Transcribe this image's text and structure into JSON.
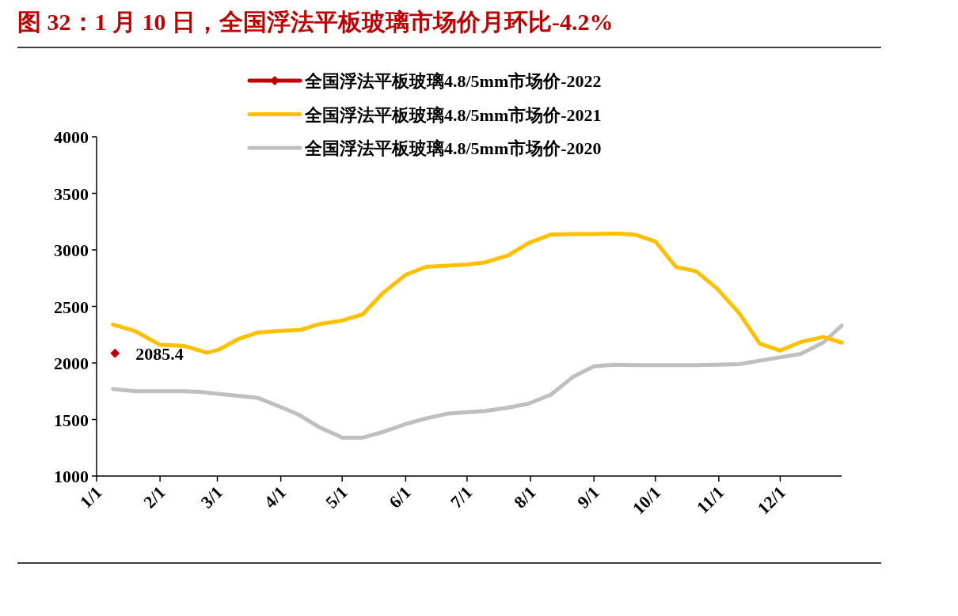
{
  "chart_data": {
    "type": "line",
    "title": "图 32：1 月 10 日，全国浮法平板玻璃市场价月环比-4.2%",
    "legend": "top",
    "line_style": "solid",
    "xlim": [
      "--01-01",
      "--12-31"
    ],
    "xticks": [
      {
        "value": "--01-01",
        "label": "1/1"
      },
      {
        "value": "--02-01",
        "label": "2/1"
      },
      {
        "value": "--03-01",
        "label": "3/1"
      },
      {
        "value": "--04-01",
        "label": "4/1"
      },
      {
        "value": "--05-01",
        "label": "5/1"
      },
      {
        "value": "--06-01",
        "label": "6/1"
      },
      {
        "value": "--07-01",
        "label": "7/1"
      },
      {
        "value": "--08-01",
        "label": "8/1"
      },
      {
        "value": "--09-01",
        "label": "9/1"
      },
      {
        "value": "--10-01",
        "label": "10/1"
      },
      {
        "value": "--11-01",
        "label": "11/1"
      },
      {
        "value": "--12-01",
        "label": "12/1"
      }
    ],
    "ylim": [
      1000,
      4000
    ],
    "yticks": [
      1000,
      1500,
      2000,
      2500,
      3000,
      3500,
      4000
    ],
    "series": [
      {
        "name": "全国浮法平板玻璃4.8/5mm市场价-2022",
        "color": "#c00000",
        "marker": "diamond",
        "x": [
          "--01-10"
        ],
        "values": [
          2085.4
        ],
        "value_labels": [
          "2085.4"
        ]
      },
      {
        "name": "全国浮法平板玻璃4.8/5mm市场价-2021",
        "color": "#ffc000",
        "marker": "none",
        "x": [
          "--01-09",
          "--01-20",
          "--02-01",
          "--02-13",
          "--02-24",
          "--03-02",
          "--03-11",
          "--03-21",
          "--04-01",
          "--04-10",
          "--04-20",
          "--05-01",
          "--05-11",
          "--05-21",
          "--06-01",
          "--06-11",
          "--06-21",
          "--07-01",
          "--07-10",
          "--07-21",
          "--07-31",
          "--08-11",
          "--08-22",
          "--09-01",
          "--09-11",
          "--09-21",
          "--10-01",
          "--10-11",
          "--10-21",
          "--10-31",
          "--11-11",
          "--11-21",
          "--12-01",
          "--12-11",
          "--12-22",
          "--12-31"
        ],
        "values": [
          2340,
          2280,
          2160,
          2150,
          2090,
          2120,
          2210,
          2270,
          2285,
          2290,
          2345,
          2375,
          2430,
          2620,
          2780,
          2850,
          2860,
          2870,
          2890,
          2950,
          3060,
          3135,
          3140,
          3140,
          3145,
          3135,
          3075,
          2850,
          2810,
          2660,
          2440,
          2170,
          2110,
          2185,
          2230,
          2180
        ]
      },
      {
        "name": "全国浮法平板玻璃4.8/5mm市场价-2020",
        "color": "#bfbfbf",
        "marker": "none",
        "x": [
          "--01-09",
          "--01-20",
          "--02-01",
          "--02-13",
          "--02-20",
          "--03-02",
          "--03-11",
          "--03-21",
          "--04-01",
          "--04-10",
          "--04-20",
          "--05-01",
          "--05-11",
          "--05-21",
          "--06-01",
          "--06-11",
          "--06-21",
          "--07-01",
          "--07-10",
          "--07-21",
          "--07-31",
          "--08-11",
          "--08-22",
          "--09-01",
          "--09-11",
          "--09-21",
          "--10-01",
          "--10-11",
          "--10-21",
          "--10-31",
          "--11-11",
          "--11-21",
          "--12-01",
          "--12-11",
          "--12-22",
          "--12-31"
        ],
        "values": [
          1770,
          1750,
          1750,
          1750,
          1745,
          1725,
          1710,
          1690,
          1610,
          1540,
          1430,
          1340,
          1340,
          1390,
          1460,
          1510,
          1550,
          1565,
          1575,
          1605,
          1640,
          1720,
          1880,
          1970,
          1985,
          1980,
          1980,
          1980,
          1980,
          1985,
          1990,
          2020,
          2050,
          2080,
          2180,
          2330
        ]
      }
    ]
  }
}
